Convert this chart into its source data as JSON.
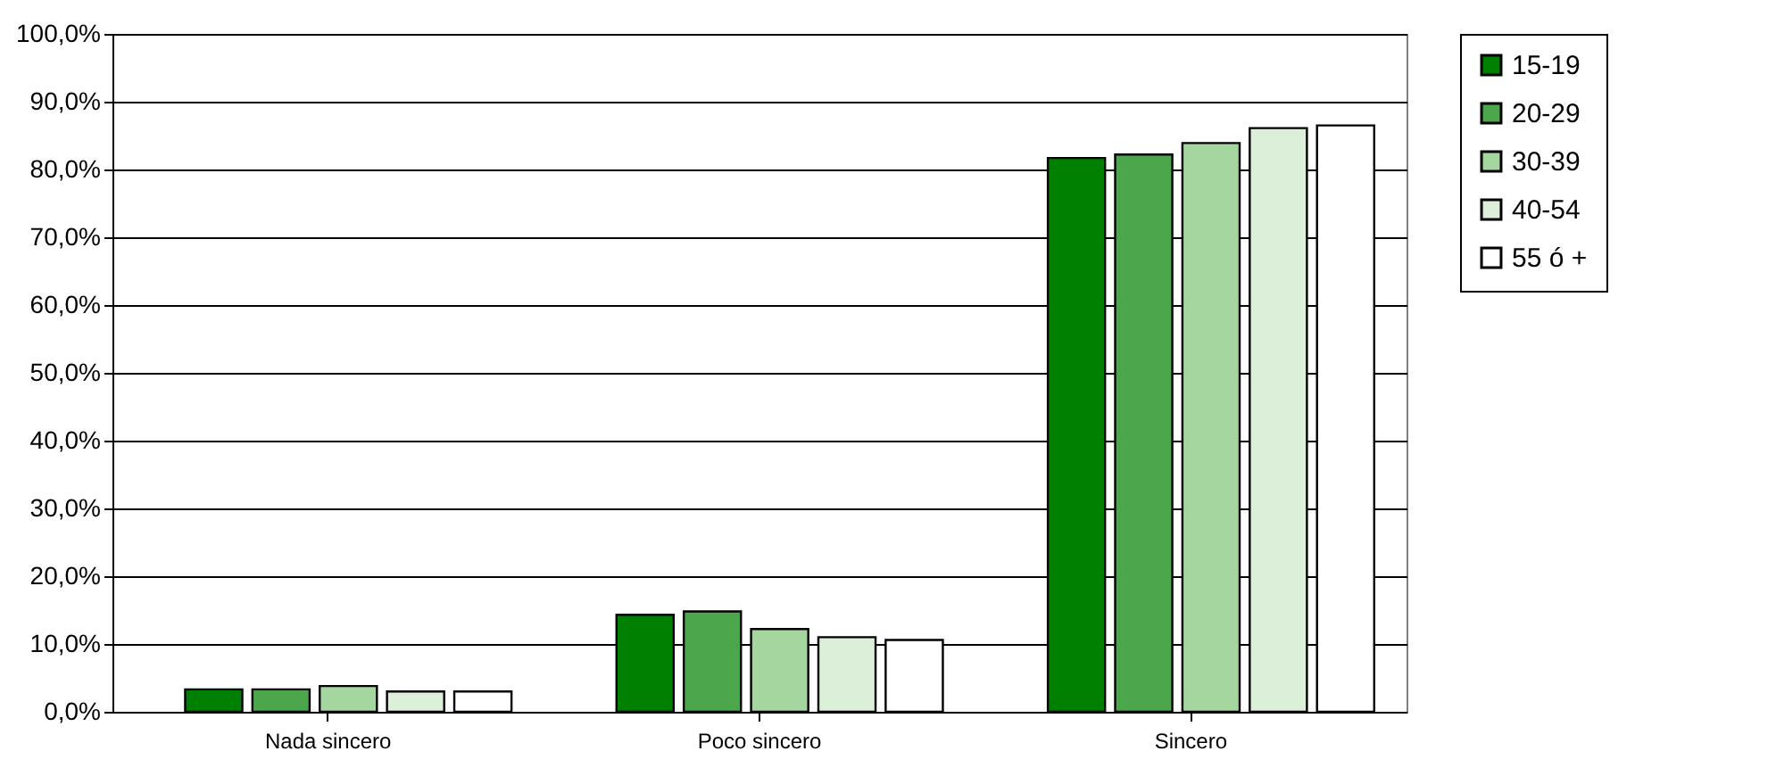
{
  "chart_data": {
    "type": "bar",
    "categories": [
      "Nada sincero",
      "Poco sincero",
      "Sincero"
    ],
    "series": [
      {
        "name": "15-19",
        "color": "#008000",
        "values": [
          3.3,
          14.3,
          81.7
        ]
      },
      {
        "name": "20-29",
        "color": "#4ca64c",
        "values": [
          3.3,
          14.8,
          82.2
        ]
      },
      {
        "name": "30-39",
        "color": "#a6d6a0",
        "values": [
          3.8,
          12.2,
          83.9
        ]
      },
      {
        "name": "40-54",
        "color": "#dcefd8",
        "values": [
          3.0,
          11.0,
          86.1
        ]
      },
      {
        "name": "55 ó +",
        "color": "#ffffff",
        "values": [
          3.0,
          10.6,
          86.5
        ]
      }
    ],
    "ylim": [
      0,
      100
    ],
    "yticks": [
      {
        "value": 0,
        "label": "0,0%"
      },
      {
        "value": 10,
        "label": "10,0%"
      },
      {
        "value": 20,
        "label": "20,0%"
      },
      {
        "value": 30,
        "label": "30,0%"
      },
      {
        "value": 40,
        "label": "40,0%"
      },
      {
        "value": 50,
        "label": "50,0%"
      },
      {
        "value": 60,
        "label": "60,0%"
      },
      {
        "value": 70,
        "label": "70,0%"
      },
      {
        "value": 80,
        "label": "80,0%"
      },
      {
        "value": 90,
        "label": "90,0%"
      },
      {
        "value": 100,
        "label": "100,0%"
      }
    ],
    "grid": "y",
    "legend": "right"
  }
}
